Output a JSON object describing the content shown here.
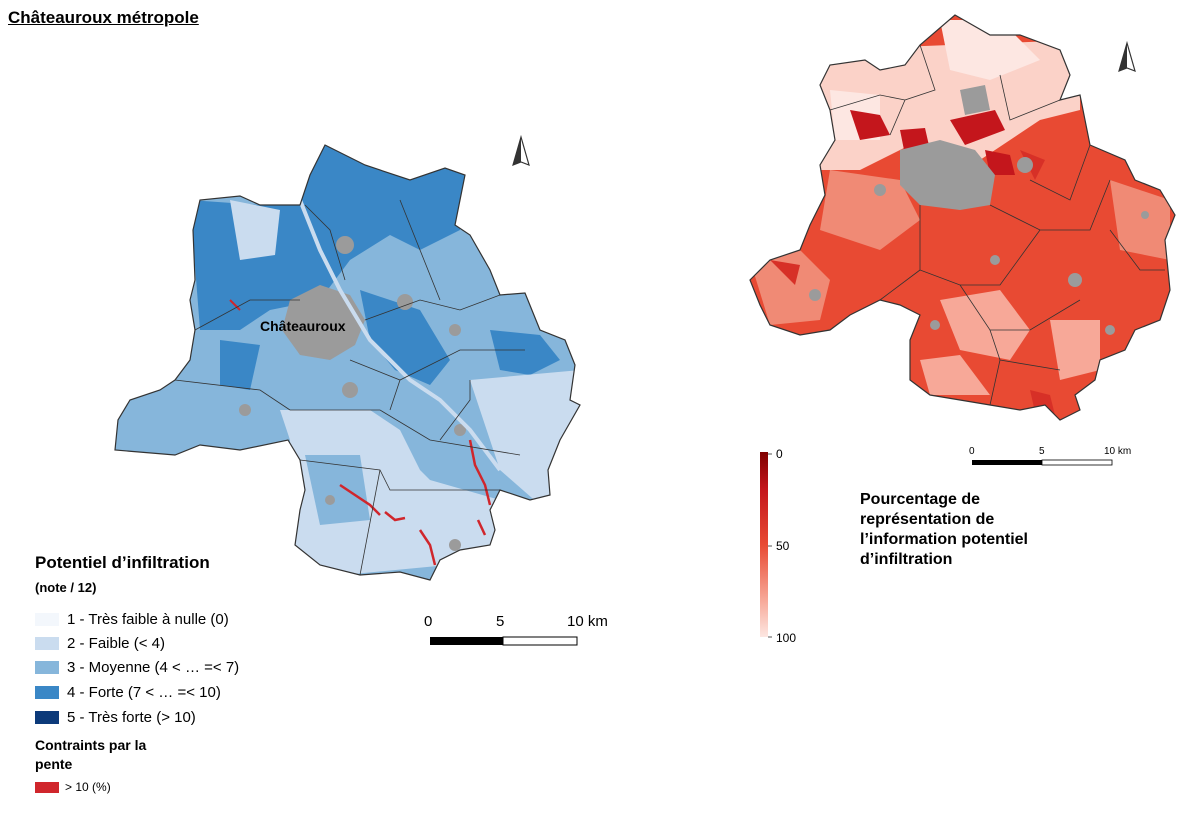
{
  "title": "Châteauroux métropole",
  "left_map": {
    "city_label": "Châteauroux",
    "north_arrow": "north-arrow-icon",
    "scale": {
      "ticks": [
        "0",
        "5",
        "10 km"
      ]
    },
    "legend": {
      "title": "Potentiel d’infiltration",
      "subtitle": "(note / 12)",
      "items": [
        {
          "label": "1 - Très faible à nulle (0)",
          "color": "#f3f7fc"
        },
        {
          "label": "2 - Faible (< 4)",
          "color": "#cadcef"
        },
        {
          "label": "3 - Moyenne (4 < … =< 7)",
          "color": "#86b6db"
        },
        {
          "label": "4 - Forte (7 < … =< 10)",
          "color": "#3a87c6"
        },
        {
          "label": "5 - Très forte (> 10)",
          "color": "#0c3a7a"
        }
      ],
      "slope": {
        "title": "Contraints par la pente",
        "item": "> 10 (%)",
        "color": "#d0262c"
      }
    }
  },
  "right_map": {
    "north_arrow": "north-arrow-icon",
    "scale": {
      "ticks": [
        "0",
        "5",
        "10 km"
      ]
    },
    "gradient": {
      "ticks": [
        "0",
        "50",
        "100"
      ],
      "colors": [
        "#7f0000",
        "#e84a33",
        "#fde7e2"
      ],
      "title": "Pourcentage de représentation de l’information potentiel d’infiltration"
    },
    "urban_color": "#9b9b9b"
  }
}
